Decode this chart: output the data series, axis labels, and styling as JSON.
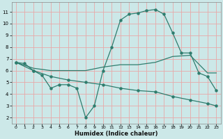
{
  "xlabel": "Humidex (Indice chaleur)",
  "background_color": "#cce8e8",
  "grid_color": "#e8a8a8",
  "line_color": "#2e7d6e",
  "xlim_min": -0.5,
  "xlim_max": 23.5,
  "ylim_min": 1.5,
  "ylim_max": 11.8,
  "xticks": [
    0,
    1,
    2,
    3,
    4,
    5,
    6,
    7,
    8,
    9,
    10,
    11,
    12,
    13,
    14,
    15,
    16,
    17,
    18,
    19,
    20,
    21,
    22,
    23
  ],
  "yticks": [
    2,
    3,
    4,
    5,
    6,
    7,
    8,
    9,
    10,
    11
  ],
  "curve1_x": [
    0,
    1,
    2,
    3,
    4,
    5,
    6,
    7,
    8,
    9,
    10,
    11,
    12,
    13,
    14,
    15,
    16,
    17,
    18,
    19,
    20,
    21,
    22,
    23
  ],
  "curve1_y": [
    6.7,
    6.6,
    6.0,
    5.6,
    4.5,
    4.8,
    4.8,
    4.5,
    2.0,
    3.0,
    6.0,
    8.0,
    10.3,
    10.8,
    10.9,
    11.1,
    11.2,
    10.8,
    9.2,
    7.5,
    7.5,
    5.8,
    5.5,
    4.3
  ],
  "curve2_x": [
    0,
    2,
    4,
    6,
    8,
    10,
    12,
    14,
    16,
    18,
    20,
    22,
    23
  ],
  "curve2_y": [
    6.7,
    6.2,
    6.0,
    6.0,
    6.0,
    6.3,
    6.5,
    6.5,
    6.7,
    7.2,
    7.3,
    5.8,
    5.8
  ],
  "curve3_x": [
    0,
    2,
    4,
    6,
    8,
    10,
    12,
    14,
    16,
    18,
    20,
    22,
    23
  ],
  "curve3_y": [
    6.7,
    6.0,
    5.5,
    5.2,
    5.0,
    4.8,
    4.5,
    4.3,
    4.2,
    3.8,
    3.5,
    3.2,
    3.0
  ]
}
